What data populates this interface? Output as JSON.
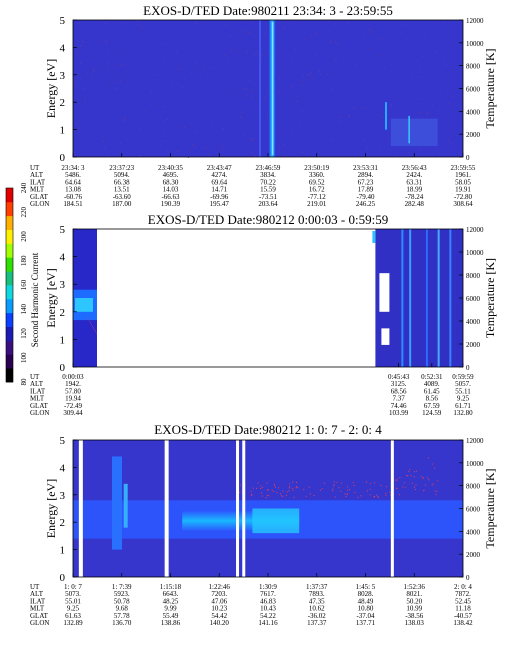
{
  "colorbar": {
    "label": "Second Harmonic Current",
    "ticks": [
      "80",
      "100",
      "120",
      "140",
      "160",
      "180",
      "200",
      "220",
      "240"
    ],
    "colors": [
      "#000000",
      "#2a0050",
      "#3a1080",
      "#1c1cb4",
      "#0a40ff",
      "#0a9cff",
      "#10d8e0",
      "#18c080",
      "#30e000",
      "#a0ff00",
      "#fff000",
      "#ffb000",
      "#ff4000",
      "#e00000"
    ]
  },
  "common": {
    "ylabel_left": "Energy [eV]",
    "ylabel_right": "Temperature [K]",
    "yticks_left": [
      "0",
      "1",
      "2",
      "3",
      "4",
      "5"
    ],
    "yticks_right": [
      "0",
      "2000",
      "4000",
      "6000",
      "8000",
      "10000",
      "12000"
    ],
    "row_labels": [
      "UT",
      "ALT",
      "ILAT",
      "MLT",
      "GLAT",
      "GLON"
    ]
  },
  "chart_data": [
    {
      "type": "heatmap",
      "title": "EXOS-D/TED   Date:980211  23:34: 3 - 23:59:55",
      "xlabel": "UT",
      "ylabel": "Energy [eV]",
      "ylabel_right": "Temperature [K]",
      "ylim": [
        0,
        5
      ],
      "ylim_right": [
        0,
        12000
      ],
      "background": "#3636cc",
      "columns": [
        [
          "23:34: 3",
          "5486.",
          "64.64",
          "13.08",
          "-60.76",
          "184.51"
        ],
        [
          "23:37:23",
          "5094.",
          "66.38",
          "13.51",
          "-63.60",
          "187.00"
        ],
        [
          "23:40:35",
          "4695.",
          "68.30",
          "14.03",
          "-66.63",
          "190.39"
        ],
        [
          "23:43:47",
          "4274.",
          "69.64",
          "14.71",
          "-69.96",
          "195.47"
        ],
        [
          "23:46:59",
          "3834.",
          "70.22",
          "15.59",
          "-73.51",
          "203.64"
        ],
        [
          "23:50:19",
          "3360.",
          "69.52",
          "16.72",
          "-77.12",
          "219.01"
        ],
        [
          "23:53:31",
          "2894.",
          "67.23",
          "17.89",
          "-79.40",
          "246.25"
        ],
        [
          "23:56:43",
          "2424.",
          "63.31",
          "18.99",
          "-78.24",
          "282.48"
        ],
        [
          "23:59:55",
          "1961.",
          "58.05",
          "19.91",
          "-72.80",
          "308.64"
        ]
      ]
    },
    {
      "type": "heatmap",
      "title": "EXOS-D/TED   Date:980212  0:00:03 - 0:59:59",
      "xlabel": "UT",
      "ylabel": "Energy [eV]",
      "ylabel_right": "Temperature [K]",
      "ylim": [
        0,
        5
      ],
      "ylim_right": [
        0,
        12000
      ],
      "background": "#ffffff",
      "columns": [
        [
          "0:00:03",
          "1942.",
          "57.80",
          "19.94",
          "-72.49",
          "309.44"
        ],
        [
          "0:45:43",
          "3125.",
          "68.56",
          "7.37",
          "74.46",
          "103.99"
        ],
        [
          "0:52:31",
          "4089.",
          "61.45",
          "8.56",
          "67.59",
          "124.59"
        ],
        [
          "0:59:59",
          "5057.",
          "55.11",
          "9.25",
          "61.71",
          "132.80"
        ]
      ]
    },
    {
      "type": "heatmap",
      "title": "EXOS-D/TED   Date:980212  1: 0: 7 - 2: 0: 4",
      "xlabel": "UT",
      "ylabel": "Energy [eV]",
      "ylabel_right": "Temperature [K]",
      "ylim": [
        0,
        5
      ],
      "ylim_right": [
        0,
        12000
      ],
      "background": "#3636cc",
      "columns": [
        [
          "1: 0: 7",
          "5073.",
          "55.01",
          "9.25",
          "61.63",
          "132.89"
        ],
        [
          "1: 7:39",
          "5923.",
          "50.78",
          "9.68",
          "57.78",
          "136.70"
        ],
        [
          "1:15:18",
          "6643.",
          "48.25",
          "9.99",
          "55.49",
          "138.86"
        ],
        [
          "1:22:46",
          "7203.",
          "47.06",
          "10.23",
          "54.42",
          "140.20"
        ],
        [
          "1:30:9",
          "7617.",
          "46.83",
          "10.43",
          "54.22",
          "141.16"
        ],
        [
          "1:37:37",
          "7893.",
          "47.35",
          "10.62",
          "-36.02",
          "137.37"
        ],
        [
          "1:45: 5",
          "8028.",
          "48.49",
          "10.80",
          "-37.04",
          "137.71"
        ],
        [
          "1:52:36",
          "8021.",
          "50.20",
          "10.99",
          "-38.56",
          "138.03"
        ],
        [
          "2: 0: 4",
          "7872.",
          "52.45",
          "11.18",
          "-40.57",
          "138.42"
        ]
      ]
    }
  ]
}
